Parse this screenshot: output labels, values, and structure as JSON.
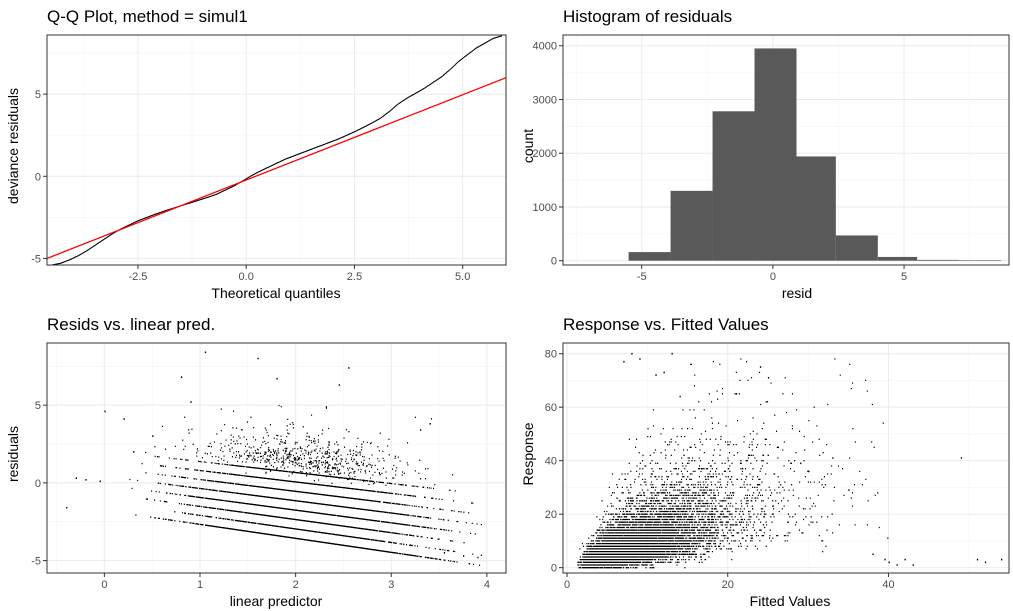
{
  "chart_data": [
    {
      "id": "qq",
      "type": "scatter",
      "title": "Q-Q Plot, method = simul1",
      "xlabel": "Theoretical quantiles",
      "ylabel": "deviance residuals",
      "xlim": [
        -4.6,
        6.0
      ],
      "ylim": [
        -5.4,
        8.6
      ],
      "xticks": [
        -2.5,
        0,
        2.5,
        5
      ],
      "xtick_labels": [
        "-2.5",
        "0.0",
        "2.5",
        "5.0"
      ],
      "yticks": [
        -5,
        0,
        5
      ],
      "ytick_labels": [
        "-5",
        "0",
        "5"
      ],
      "grid": true,
      "series": [
        {
          "kind": "points",
          "color": "#000000",
          "x": [
            -4.5,
            -4.3,
            -4.1,
            -3.9,
            -3.7,
            -3.5,
            -3.3,
            -3.1,
            -2.9,
            -2.7,
            -2.5,
            -2.3,
            -2.1,
            -1.9,
            -1.7,
            -1.5,
            -1.3,
            -1.1,
            -0.9,
            -0.7,
            -0.5,
            -0.3,
            -0.1,
            0.1,
            0.3,
            0.5,
            0.7,
            0.9,
            1.1,
            1.3,
            1.5,
            1.7,
            1.9,
            2.1,
            2.3,
            2.5,
            2.7,
            2.9,
            3.1,
            3.3,
            3.5,
            3.7,
            3.9,
            4.1,
            4.3,
            4.5,
            4.7,
            4.9,
            5.1,
            5.3,
            5.5,
            5.7,
            5.9
          ],
          "y": [
            -5.4,
            -5.3,
            -5.1,
            -4.85,
            -4.55,
            -4.2,
            -3.85,
            -3.5,
            -3.2,
            -2.95,
            -2.7,
            -2.5,
            -2.3,
            -2.12,
            -1.95,
            -1.78,
            -1.62,
            -1.45,
            -1.28,
            -1.1,
            -0.85,
            -0.6,
            -0.3,
            0.02,
            0.3,
            0.55,
            0.8,
            1.05,
            1.25,
            1.45,
            1.65,
            1.85,
            2.05,
            2.25,
            2.48,
            2.72,
            2.98,
            3.25,
            3.55,
            3.95,
            4.4,
            4.75,
            5.05,
            5.35,
            5.7,
            6.05,
            6.5,
            7.0,
            7.4,
            7.8,
            8.1,
            8.4,
            8.55
          ]
        },
        {
          "kind": "line",
          "color": "#ff0000",
          "x": [
            -4.6,
            6.0
          ],
          "y": [
            -5.0,
            6.0
          ]
        }
      ]
    },
    {
      "id": "hist",
      "type": "bar",
      "title": "Histogram of residuals",
      "xlabel": "resid",
      "ylabel": "count",
      "xlim": [
        -8.0,
        9.0
      ],
      "ylim": [
        -80,
        4200
      ],
      "xticks": [
        -5,
        0,
        5
      ],
      "xtick_labels": [
        "-5",
        "0",
        "5"
      ],
      "yticks": [
        0,
        1000,
        2000,
        3000,
        4000
      ],
      "ytick_labels": [
        "0",
        "1000",
        "2000",
        "3000",
        "4000"
      ],
      "grid": true,
      "bar_color": "#595959",
      "bins": [
        {
          "x0": -5.5,
          "x1": -3.9,
          "count": 160
        },
        {
          "x0": -3.9,
          "x1": -2.3,
          "count": 1300
        },
        {
          "x0": -2.3,
          "x1": -0.7,
          "count": 2780
        },
        {
          "x0": -0.7,
          "x1": 0.9,
          "count": 3950
        },
        {
          "x0": 0.9,
          "x1": 2.4,
          "count": 1940
        },
        {
          "x0": 2.4,
          "x1": 4.0,
          "count": 470
        },
        {
          "x0": 4.0,
          "x1": 5.5,
          "count": 70
        },
        {
          "x0": 5.5,
          "x1": 7.1,
          "count": 15
        },
        {
          "x0": 7.1,
          "x1": 8.7,
          "count": 5
        }
      ]
    },
    {
      "id": "resid",
      "type": "scatter",
      "title": "Resids vs. linear pred.",
      "xlabel": "linear predictor",
      "ylabel": "residuals",
      "xlim": [
        -0.6,
        4.2
      ],
      "ylim": [
        -5.8,
        9.0
      ],
      "xticks": [
        0,
        1,
        2,
        3,
        4
      ],
      "xtick_labels": [
        "0",
        "1",
        "2",
        "3",
        "4"
      ],
      "yticks": [
        -5,
        0,
        5
      ],
      "ytick_labels": [
        "-5",
        "0",
        "5"
      ],
      "grid": true,
      "point_color": "#000000",
      "n_points": 10000,
      "pattern": {
        "x_mean": 2.1,
        "x_sd": 0.55,
        "lowest_band_start": [
          0.25,
          -2.0
        ],
        "lowest_band_slope": -0.9,
        "band_step": 0.55,
        "spread": 2.2
      },
      "outliers": {
        "x": [
          -0.4,
          -0.3,
          -0.2,
          -0.05,
          0.0,
          0.2,
          0.3,
          0.5,
          0.8,
          0.9,
          1.05,
          1.6,
          1.8,
          2.45,
          2.55,
          3.3,
          3.4,
          3.55,
          3.75,
          3.9
        ],
        "y": [
          -1.6,
          0.3,
          0.2,
          0.1,
          4.6,
          4.1,
          2.0,
          3.0,
          6.8,
          5.2,
          8.4,
          8.0,
          6.7,
          6.3,
          7.4,
          3.4,
          3.8,
          -4.5,
          -4.7,
          -4.8
        ]
      }
    },
    {
      "id": "fitted",
      "type": "scatter",
      "title": "Response vs. Fitted Values",
      "xlabel": "Fitted Values",
      "ylabel": "Response",
      "xlim": [
        -0.5,
        55.0
      ],
      "ylim": [
        -2,
        84
      ],
      "xticks": [
        0,
        20,
        40
      ],
      "xtick_labels": [
        "0",
        "20",
        "40"
      ],
      "yticks": [
        0,
        20,
        40,
        60,
        80
      ],
      "ytick_labels": [
        "0",
        "20",
        "40",
        "60",
        "80"
      ],
      "grid": true,
      "point_color": "#000000",
      "n_points": 10000,
      "pattern": {
        "x_log_mean": 2.1,
        "x_log_sd": 0.55
      },
      "outliers": {
        "x": [
          7.0,
          8.0,
          9.0,
          11.0,
          12.0,
          13.0,
          14.0,
          21.0,
          24.0,
          25.0,
          29.0,
          30.0,
          33.0,
          35.0,
          38.0,
          39.5,
          40.0,
          41.0,
          42.0,
          43.0,
          49.0,
          51.0,
          52.0,
          54.0
        ],
        "y": [
          77,
          80,
          78,
          72,
          73,
          80,
          64,
          65,
          75,
          71,
          39,
          36,
          41,
          29,
          5,
          3,
          2,
          1,
          3,
          1,
          41,
          3,
          2,
          3
        ]
      }
    }
  ]
}
